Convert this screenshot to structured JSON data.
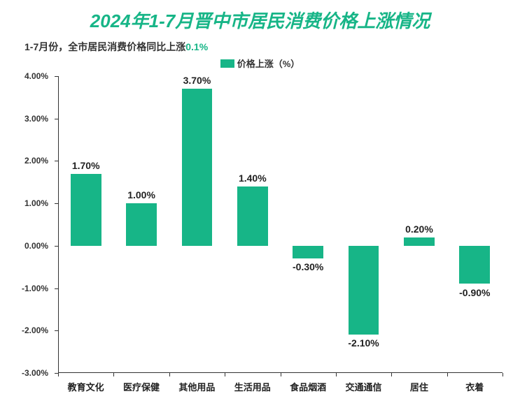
{
  "title": {
    "text": "2024年1-7月晋中市居民消费价格上涨情况",
    "color": "#17b587",
    "fontsize": 26
  },
  "subtitle": {
    "prefix": "1-7月份，全市居民消费价格同比上涨",
    "highlight": "0.1%",
    "prefix_color": "#333333",
    "highlight_color": "#17b587",
    "fontsize": 14
  },
  "legend": {
    "label": "价格上涨（%）",
    "swatch_color": "#17b587",
    "label_color": "#333333",
    "fontsize": 13
  },
  "chart": {
    "type": "bar",
    "categories": [
      "教育文化",
      "医疗保健",
      "其他用品",
      "生活用品",
      "食品烟酒",
      "交通通信",
      "居住",
      "衣着"
    ],
    "values": [
      1.7,
      1.0,
      3.7,
      1.4,
      -0.3,
      -2.1,
      0.2,
      -0.9
    ],
    "value_labels": [
      "1.70%",
      "1.00%",
      "3.70%",
      "1.40%",
      "-0.30%",
      "-2.10%",
      "0.20%",
      "-0.90%"
    ],
    "bar_color": "#17b587",
    "ylim": [
      -3.0,
      4.0
    ],
    "ytick_step": 1.0,
    "ytick_labels": [
      "-3.00%",
      "-2.00%",
      "-1.00%",
      "0.00%",
      "1.00%",
      "2.00%",
      "3.00%",
      "4.00%"
    ],
    "ytick_values": [
      -3.0,
      -2.0,
      -1.0,
      0.0,
      1.0,
      2.0,
      3.0,
      4.0
    ],
    "bar_width_ratio": 0.55,
    "axis_color": "#333333",
    "tick_fontsize": 12,
    "xlabel_fontsize": 13,
    "value_label_fontsize": 14,
    "background_color": "#ffffff"
  }
}
